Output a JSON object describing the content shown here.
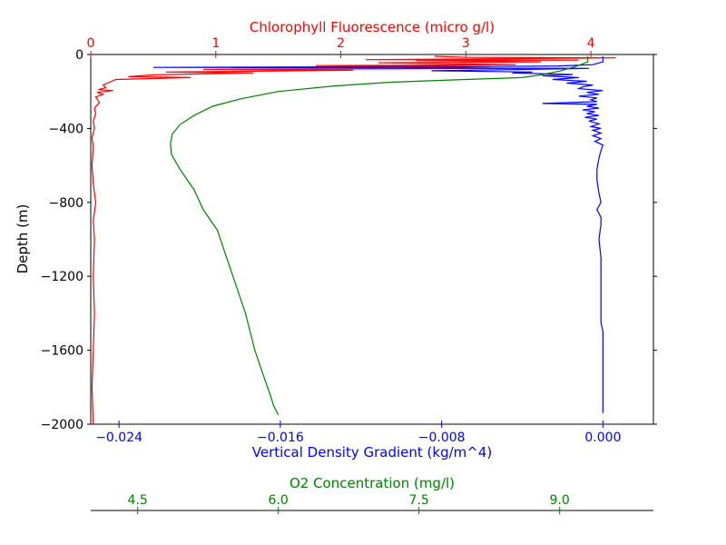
{
  "chart_data": {
    "type": "line",
    "ylabel": "Depth (m)",
    "ylim": [
      -2000,
      0
    ],
    "yticks": [
      0,
      -400,
      -800,
      -1200,
      -1600,
      -2000
    ],
    "yticklabels": [
      "0",
      "−400",
      "−800",
      "−1200",
      "−1600",
      "−2000"
    ],
    "axes": {
      "chlorophyll": {
        "label": "Chlorophyll Fluorescence (micro g/l)",
        "position": "top",
        "color": "#ff0000",
        "range": [
          0,
          4.5
        ],
        "ticks": [
          0,
          1,
          2,
          3,
          4
        ],
        "ticklabels": [
          "0",
          "1",
          "2",
          "3",
          "4"
        ]
      },
      "density": {
        "label": "Vertical Density Gradient (kg/m^4)",
        "position": "bottom",
        "color": "#0000ff",
        "range": [
          -0.0254,
          0.0025
        ],
        "ticks": [
          -0.024,
          -0.016,
          -0.008,
          0.0
        ],
        "ticklabels": [
          "−0.024",
          "−0.016",
          "−0.008",
          "0.000"
        ]
      },
      "o2": {
        "label": "O2 Concentration (mg/l)",
        "position": "bottom-offset",
        "color": "#008000",
        "range": [
          4.0,
          10.0
        ],
        "ticks": [
          4.5,
          6.0,
          7.5,
          9.0
        ],
        "ticklabels": [
          "4.5",
          "6.0",
          "7.5",
          "9.0"
        ]
      }
    },
    "series": [
      {
        "axis": "chlorophyll",
        "color": "#ff0000",
        "points": [
          [
            2.75,
            -10
          ],
          [
            3.0,
            -15
          ],
          [
            4.2,
            -18
          ],
          [
            3.4,
            -22
          ],
          [
            2.2,
            -28
          ],
          [
            3.9,
            -30
          ],
          [
            2.6,
            -33
          ],
          [
            3.6,
            -40
          ],
          [
            2.3,
            -45
          ],
          [
            3.4,
            -55
          ],
          [
            1.8,
            -60
          ],
          [
            3.2,
            -65
          ],
          [
            2.5,
            -70
          ],
          [
            3.45,
            -75
          ],
          [
            0.9,
            -80
          ],
          [
            2.1,
            -85
          ],
          [
            0.6,
            -95
          ],
          [
            1.3,
            -100
          ],
          [
            0.5,
            -110
          ],
          [
            0.3,
            -120
          ],
          [
            0.8,
            -125
          ],
          [
            0.2,
            -135
          ],
          [
            0.15,
            -150
          ],
          [
            0.1,
            -165
          ],
          [
            0.12,
            -180
          ],
          [
            0.06,
            -190
          ],
          [
            0.18,
            -195
          ],
          [
            0.05,
            -205
          ],
          [
            0.1,
            -215
          ],
          [
            0.04,
            -230
          ],
          [
            0.07,
            -260
          ],
          [
            0.03,
            -290
          ],
          [
            0.04,
            -320
          ],
          [
            0.02,
            -360
          ],
          [
            0.03,
            -400
          ],
          [
            0.01,
            -450
          ],
          [
            0.02,
            -500
          ],
          [
            0.01,
            -600
          ],
          [
            0.02,
            -700
          ],
          [
            0.04,
            -800
          ],
          [
            0.02,
            -900
          ],
          [
            0.03,
            -1000
          ],
          [
            0.02,
            -1200
          ],
          [
            0.03,
            -1400
          ],
          [
            0.02,
            -1600
          ],
          [
            0.01,
            -1800
          ],
          [
            0.02,
            -2000
          ]
        ]
      },
      {
        "axis": "density",
        "color": "#0000ff",
        "points": [
          [
            0.0,
            -10
          ],
          [
            0.0,
            -40
          ],
          [
            -0.0005,
            -55
          ],
          [
            -0.0022,
            -62
          ],
          [
            -0.0055,
            -65
          ],
          [
            -0.0223,
            -70
          ],
          [
            -0.0007,
            -75
          ],
          [
            -0.0045,
            -82
          ],
          [
            -0.0085,
            -88
          ],
          [
            -0.0035,
            -95
          ],
          [
            -0.0045,
            -100
          ],
          [
            -0.0015,
            -108
          ],
          [
            -0.003,
            -115
          ],
          [
            -0.0012,
            -125
          ],
          [
            -0.0025,
            -135
          ],
          [
            -0.0008,
            -145
          ],
          [
            -0.0018,
            -155
          ],
          [
            -0.0005,
            -165
          ],
          [
            -0.001,
            -175
          ],
          [
            -0.0012,
            -185
          ],
          [
            0.0,
            -195
          ],
          [
            -0.0008,
            -205
          ],
          [
            -0.0002,
            -215
          ],
          [
            -0.0012,
            -225
          ],
          [
            -0.0003,
            -235
          ],
          [
            -0.0006,
            -245
          ],
          [
            -0.0003,
            -255
          ],
          [
            -0.003,
            -265
          ],
          [
            -0.0003,
            -270
          ],
          [
            -0.0008,
            -280
          ],
          [
            -0.0002,
            -290
          ],
          [
            -0.001,
            -300
          ],
          [
            -0.0004,
            -310
          ],
          [
            -0.0008,
            -320
          ],
          [
            -0.0002,
            -330
          ],
          [
            -0.0009,
            -340
          ],
          [
            -0.0003,
            -350
          ],
          [
            -0.0007,
            -360
          ],
          [
            -0.0002,
            -375
          ],
          [
            -0.0006,
            -390
          ],
          [
            -0.0001,
            -400
          ],
          [
            -0.0005,
            -410
          ],
          [
            -0.0001,
            -425
          ],
          [
            -0.0005,
            -440
          ],
          [
            -0.0001,
            -455
          ],
          [
            -0.0004,
            -470
          ],
          [
            0.0,
            -490
          ],
          [
            -0.0001,
            -520
          ],
          [
            -0.0002,
            -560
          ],
          [
            -0.0003,
            -620
          ],
          [
            -0.0003,
            -680
          ],
          [
            -0.0002,
            -750
          ],
          [
            -0.0001,
            -800
          ],
          [
            -0.0003,
            -840
          ],
          [
            -0.0001,
            -880
          ],
          [
            -0.0001,
            -920
          ],
          [
            -0.0002,
            -1000
          ],
          [
            -0.0001,
            -1100
          ],
          [
            -0.0001,
            -1300
          ],
          [
            -0.0001,
            -1450
          ],
          [
            0.0,
            -1500
          ],
          [
            0.0,
            -1700
          ],
          [
            0.0,
            -1900
          ],
          [
            0.0,
            -1940
          ]
        ]
      },
      {
        "axis": "o2",
        "color": "#008000",
        "points": [
          [
            9.3,
            -8
          ],
          [
            9.3,
            -40
          ],
          [
            9.2,
            -60
          ],
          [
            9.0,
            -90
          ],
          [
            8.8,
            -110
          ],
          [
            8.6,
            -125
          ],
          [
            8.0,
            -135
          ],
          [
            7.2,
            -150
          ],
          [
            6.6,
            -170
          ],
          [
            6.0,
            -200
          ],
          [
            5.6,
            -240
          ],
          [
            5.3,
            -280
          ],
          [
            5.1,
            -330
          ],
          [
            4.95,
            -380
          ],
          [
            4.87,
            -430
          ],
          [
            4.85,
            -480
          ],
          [
            4.86,
            -540
          ],
          [
            4.95,
            -620
          ],
          [
            5.1,
            -730
          ],
          [
            5.2,
            -840
          ],
          [
            5.35,
            -950
          ],
          [
            5.45,
            -1100
          ],
          [
            5.55,
            -1250
          ],
          [
            5.65,
            -1400
          ],
          [
            5.75,
            -1600
          ],
          [
            5.85,
            -1750
          ],
          [
            5.92,
            -1850
          ],
          [
            5.95,
            -1900
          ],
          [
            6.0,
            -1950
          ]
        ]
      }
    ]
  }
}
